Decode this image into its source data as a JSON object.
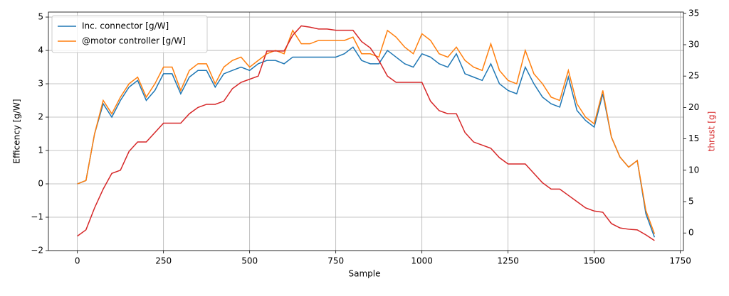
{
  "chart_data": {
    "type": "line",
    "x_label": "Sample",
    "y_label": "Efficency [g/W]",
    "y2_label": "thrust [g]",
    "y2_label_color": "#d62728",
    "grid": true,
    "legend": "upper left",
    "xlim": [
      -84,
      1759
    ],
    "ylim": [
      -2,
      5.15
    ],
    "y2lim": [
      -2.8,
      35.2
    ],
    "xticks": [
      0,
      250,
      500,
      750,
      1000,
      1250,
      1500,
      1750
    ],
    "yticks": [
      {
        "value": -2,
        "label": "−2"
      },
      {
        "value": -1,
        "label": "−1"
      },
      0,
      1,
      2,
      3,
      4,
      5
    ],
    "y2ticks": [
      0,
      5,
      10,
      15,
      20,
      25,
      30,
      35
    ],
    "x": [
      0,
      25,
      50,
      75,
      100,
      125,
      150,
      175,
      200,
      225,
      250,
      275,
      300,
      325,
      350,
      375,
      400,
      425,
      450,
      475,
      500,
      525,
      550,
      575,
      600,
      625,
      650,
      675,
      700,
      725,
      750,
      775,
      800,
      825,
      850,
      875,
      900,
      925,
      950,
      975,
      1000,
      1025,
      1050,
      1075,
      1100,
      1125,
      1150,
      1175,
      1200,
      1225,
      1250,
      1275,
      1300,
      1325,
      1350,
      1375,
      1400,
      1425,
      1450,
      1475,
      1500,
      1525,
      1550,
      1575,
      1600,
      1625,
      1650,
      1675
    ],
    "series": [
      {
        "name": "Inc. connector [g/W]",
        "color": "#1f77b4",
        "values": [
          0,
          0.1,
          1.5,
          2.4,
          2.0,
          2.5,
          2.9,
          3.1,
          2.5,
          2.8,
          3.3,
          3.3,
          2.7,
          3.2,
          3.4,
          3.4,
          2.9,
          3.3,
          3.4,
          3.5,
          3.4,
          3.6,
          3.7,
          3.7,
          3.6,
          3.8,
          3.8,
          3.8,
          3.8,
          3.8,
          3.8,
          3.9,
          4.1,
          3.7,
          3.6,
          3.6,
          4.0,
          3.8,
          3.6,
          3.5,
          3.9,
          3.8,
          3.6,
          3.5,
          3.9,
          3.3,
          3.2,
          3.1,
          3.6,
          3.0,
          2.8,
          2.7,
          3.5,
          3.0,
          2.6,
          2.4,
          2.3,
          3.2,
          2.2,
          1.9,
          1.7,
          2.7,
          1.4,
          0.8,
          0.5,
          0.7,
          -0.9,
          -1.6
        ]
      },
      {
        "name": "@motor controller [g/W]",
        "color": "#ff7f0e",
        "values": [
          0,
          0.1,
          1.5,
          2.5,
          2.1,
          2.6,
          3.0,
          3.2,
          2.6,
          3.0,
          3.5,
          3.5,
          2.8,
          3.4,
          3.6,
          3.6,
          3.0,
          3.5,
          3.7,
          3.8,
          3.5,
          3.7,
          3.9,
          4.0,
          3.9,
          4.6,
          4.2,
          4.2,
          4.3,
          4.3,
          4.3,
          4.3,
          4.4,
          3.9,
          3.9,
          3.8,
          4.6,
          4.4,
          4.1,
          3.9,
          4.5,
          4.3,
          3.9,
          3.8,
          4.1,
          3.7,
          3.5,
          3.4,
          4.2,
          3.4,
          3.1,
          3.0,
          4.0,
          3.3,
          3.0,
          2.6,
          2.5,
          3.4,
          2.4,
          2.0,
          1.8,
          2.8,
          1.4,
          0.8,
          0.5,
          0.7,
          -0.8,
          -1.5
        ]
      },
      {
        "color": "#d62728",
        "axis": "y2",
        "values": [
          -0.5,
          0.5,
          4,
          7,
          9.5,
          10,
          13,
          14.5,
          14.5,
          16,
          17.5,
          17.5,
          17.5,
          19,
          20,
          20.5,
          20.5,
          21,
          23,
          24,
          24.5,
          25,
          29,
          29,
          29,
          31.5,
          33,
          32.8,
          32.5,
          32.5,
          32.3,
          32.3,
          32.3,
          30.5,
          29.5,
          27.5,
          25,
          24,
          24,
          24,
          24,
          21,
          19.5,
          19,
          19,
          16,
          14.5,
          14,
          13.5,
          12,
          11,
          11,
          11,
          9.5,
          8,
          7,
          7,
          6,
          5,
          4,
          3.5,
          3.3,
          1.5,
          0.8,
          0.6,
          0.5,
          -0.3,
          -1.2
        ]
      }
    ]
  }
}
